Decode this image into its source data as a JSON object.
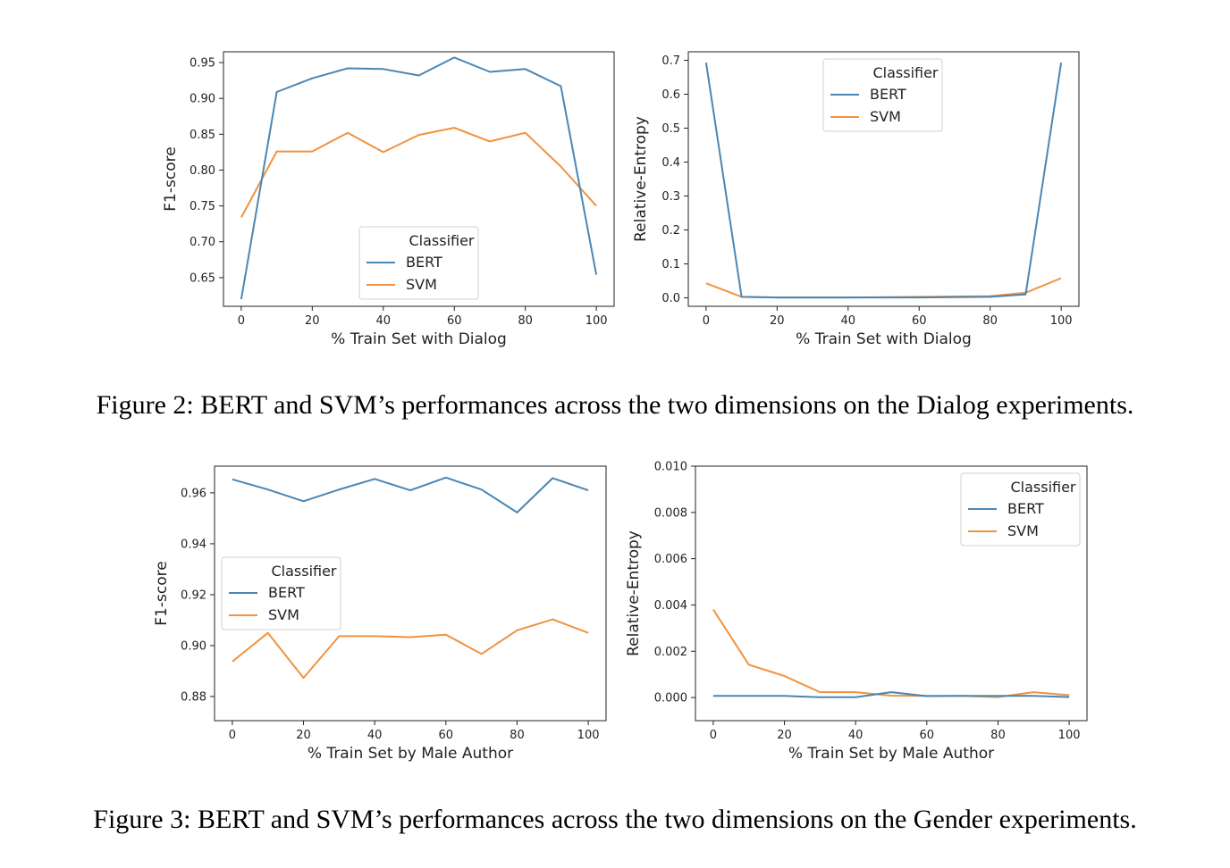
{
  "colors": {
    "BERT": "#4a86b4",
    "SVM": "#f0923f"
  },
  "captions": {
    "fig2": "Figure 2: BERT and SVM’s performances across the two dimensions on the Dialog experiments.",
    "fig3": "Figure 3: BERT and SVM’s performances across the two dimensions on the Gender experiments."
  },
  "chart_data": [
    {
      "type": "line",
      "xlabel": "% Train Set with Dialog",
      "ylabel": "F1-score",
      "xlim": [
        -5,
        105
      ],
      "ylim": [
        0.61,
        0.965
      ],
      "xticks": [
        0,
        20,
        40,
        60,
        80,
        100
      ],
      "xtick_labels": [
        "0",
        "20",
        "40",
        "60",
        "80",
        "100"
      ],
      "yticks": [
        0.65,
        0.7,
        0.75,
        0.8,
        0.85,
        0.9,
        0.95
      ],
      "ytick_labels": [
        "0.65",
        "0.70",
        "0.75",
        "0.80",
        "0.85",
        "0.90",
        "0.95"
      ],
      "legend": {
        "title": "Classifier",
        "placement": "lower-center"
      },
      "x": [
        0,
        10,
        20,
        30,
        40,
        50,
        60,
        70,
        80,
        90,
        100
      ],
      "series": [
        {
          "name": "BERT",
          "values": [
            0.62,
            0.909,
            0.928,
            0.942,
            0.941,
            0.932,
            0.957,
            0.937,
            0.941,
            0.917,
            0.654
          ]
        },
        {
          "name": "SVM",
          "values": [
            0.734,
            0.826,
            0.826,
            0.852,
            0.825,
            0.849,
            0.859,
            0.84,
            0.852,
            0.805,
            0.75
          ]
        }
      ]
    },
    {
      "type": "line",
      "xlabel": "% Train Set with Dialog",
      "ylabel": "Relative-Entropy",
      "xlim": [
        -5,
        105
      ],
      "ylim": [
        -0.025,
        0.725
      ],
      "xticks": [
        0,
        20,
        40,
        60,
        80,
        100
      ],
      "xtick_labels": [
        "0",
        "20",
        "40",
        "60",
        "80",
        "100"
      ],
      "yticks": [
        0.0,
        0.1,
        0.2,
        0.3,
        0.4,
        0.5,
        0.6,
        0.7
      ],
      "ytick_labels": [
        "0.0",
        "0.1",
        "0.2",
        "0.3",
        "0.4",
        "0.5",
        "0.6",
        "0.7"
      ],
      "legend": {
        "title": "Classifier",
        "placement": "top-center"
      },
      "x": [
        0,
        10,
        20,
        30,
        40,
        50,
        60,
        70,
        80,
        90,
        100
      ],
      "series": [
        {
          "name": "BERT",
          "values": [
            0.693,
            0.003,
            0.001,
            0.001,
            0.001,
            0.001,
            0.001,
            0.002,
            0.003,
            0.01,
            0.693
          ]
        },
        {
          "name": "SVM",
          "values": [
            0.043,
            0.003,
            0.001,
            0.001,
            0.001,
            0.002,
            0.003,
            0.004,
            0.005,
            0.015,
            0.058
          ]
        }
      ]
    },
    {
      "type": "line",
      "xlabel": "% Train Set by Male Author",
      "ylabel": "F1-score",
      "xlim": [
        -5,
        105
      ],
      "ylim": [
        0.8705,
        0.9705
      ],
      "xticks": [
        0,
        20,
        40,
        60,
        80,
        100
      ],
      "xtick_labels": [
        "0",
        "20",
        "40",
        "60",
        "80",
        "100"
      ],
      "yticks": [
        0.88,
        0.9,
        0.92,
        0.94,
        0.96
      ],
      "ytick_labels": [
        "0.88",
        "0.90",
        "0.92",
        "0.94",
        "0.96"
      ],
      "legend": {
        "title": "Classifier",
        "placement": "center-left"
      },
      "x": [
        0,
        10,
        20,
        30,
        40,
        50,
        60,
        70,
        80,
        90,
        100
      ],
      "series": [
        {
          "name": "BERT",
          "values": [
            0.9653,
            0.9613,
            0.9567,
            0.9613,
            0.9655,
            0.961,
            0.966,
            0.9613,
            0.9523,
            0.9658,
            0.961
          ]
        },
        {
          "name": "SVM",
          "values": [
            0.8937,
            0.905,
            0.8873,
            0.9037,
            0.9037,
            0.9033,
            0.9043,
            0.8967,
            0.906,
            0.9103,
            0.905
          ]
        }
      ]
    },
    {
      "type": "line",
      "xlabel": "% Train Set by Male Author",
      "ylabel": "Relative-Entropy",
      "xlim": [
        -5,
        105
      ],
      "ylim": [
        -0.001,
        0.01
      ],
      "xticks": [
        0,
        20,
        40,
        60,
        80,
        100
      ],
      "xtick_labels": [
        "0",
        "20",
        "40",
        "60",
        "80",
        "100"
      ],
      "yticks": [
        0.0,
        0.002,
        0.004,
        0.006,
        0.008,
        0.01
      ],
      "ytick_labels": [
        "0.000",
        "0.002",
        "0.004",
        "0.006",
        "0.008",
        "0.010"
      ],
      "legend": {
        "title": "Classifier",
        "placement": "upper-right"
      },
      "x": [
        0,
        10,
        20,
        30,
        40,
        50,
        60,
        70,
        80,
        90,
        100
      ],
      "series": [
        {
          "name": "BERT",
          "values": [
            7e-05,
            7e-05,
            7e-05,
            1e-05,
            1e-05,
            0.00023,
            6e-05,
            7e-05,
            7e-05,
            7e-05,
            2e-05
          ]
        },
        {
          "name": "SVM",
          "values": [
            0.0038,
            0.00142,
            0.00093,
            0.00023,
            0.00023,
            8e-05,
            7e-05,
            7e-05,
            2e-05,
            0.00023,
            0.0001
          ]
        }
      ]
    }
  ]
}
